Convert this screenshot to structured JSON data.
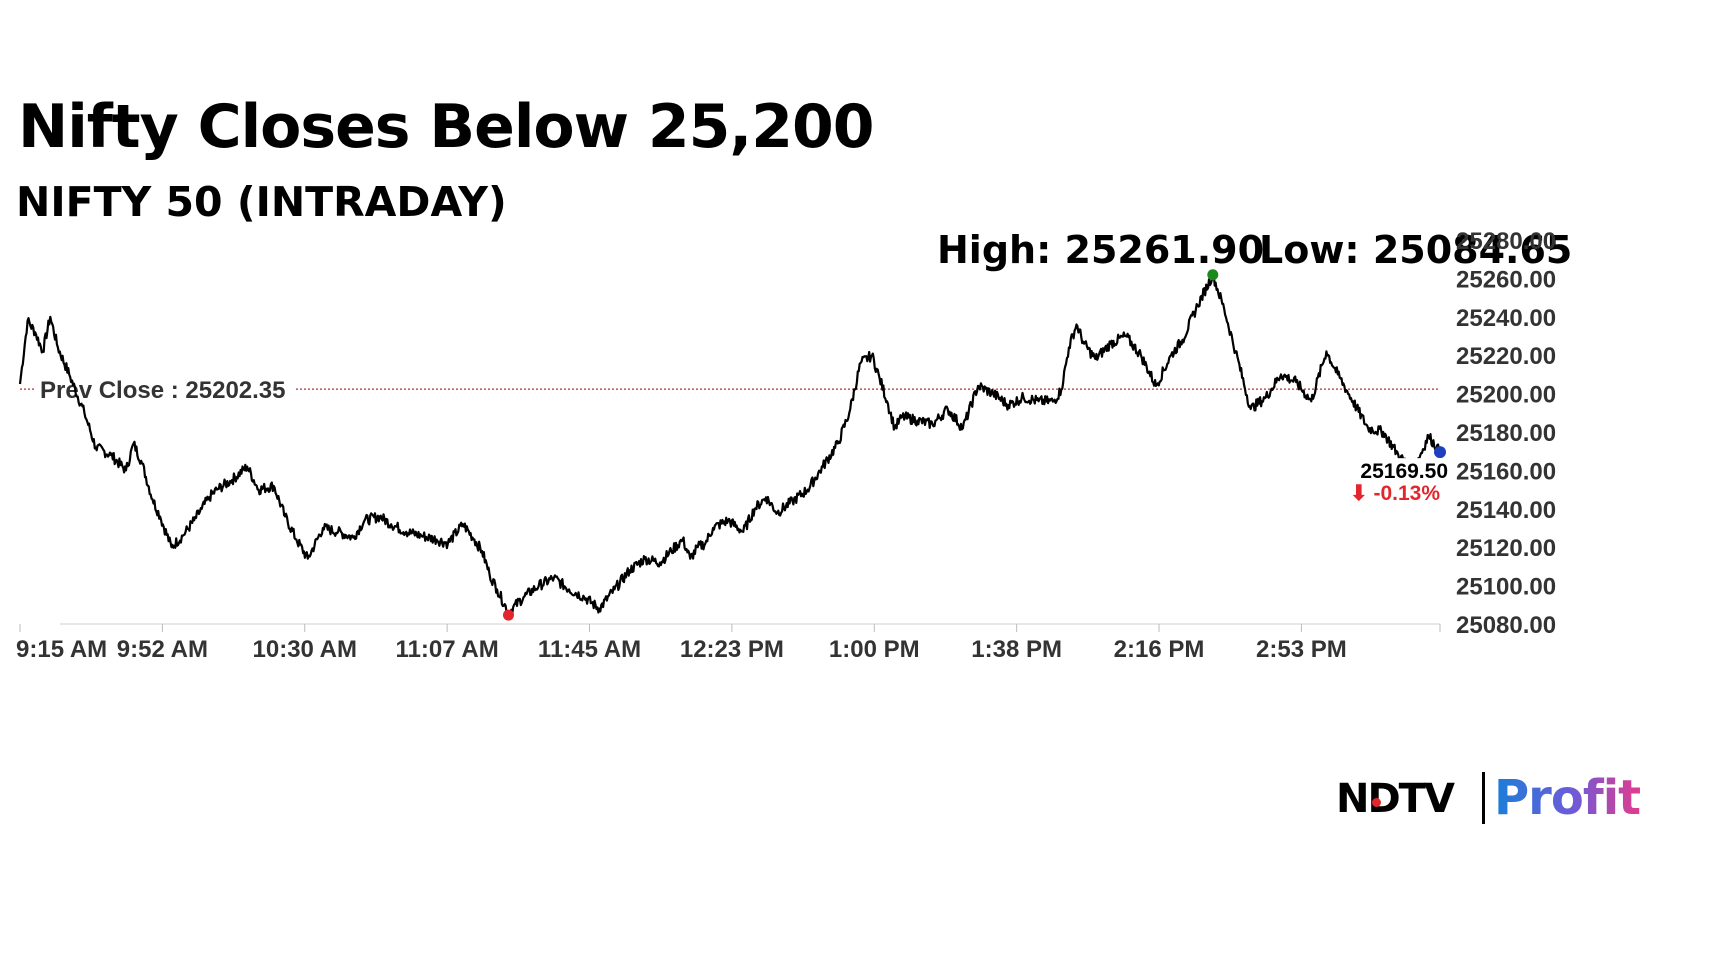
{
  "header": {
    "title": "Nifty Closes Below 25,200",
    "subtitle": "NIFTY 50 (INTRADAY)",
    "high_text": "High: 25261.90",
    "low_text": "Low: 25084.65"
  },
  "logo": {
    "brand": "NDTV",
    "product": "Profit"
  },
  "chart_data": {
    "type": "line",
    "title": "NIFTY 50 (INTRADAY)",
    "xlabel": "",
    "ylabel": "",
    "x_start": "9:15 AM",
    "x_end": "3:30 PM",
    "ylim": [
      25080,
      25280
    ],
    "y_ticks": [
      "25080.00",
      "25100.00",
      "25120.00",
      "25140.00",
      "25160.00",
      "25180.00",
      "25200.00",
      "25220.00",
      "25240.00",
      "25260.00",
      "25280.00"
    ],
    "x_ticks": [
      "9:15 AM",
      "9:52 AM",
      "10:30 AM",
      "11:07 AM",
      "11:45 AM",
      "12:23 PM",
      "1:00 PM",
      "1:38 PM",
      "2:16 PM",
      "2:53 PM"
    ],
    "prev_close": 25202.35,
    "prev_close_label": "Prev Close : 25202.35",
    "high": 25261.9,
    "low": 25084.65,
    "last_value_label": "25169.50",
    "change_label": "-0.13%",
    "change_arrow": "⬇",
    "colors": {
      "line": "#000000",
      "high_marker": "#1a8a1a",
      "low_marker": "#e3262c",
      "last_marker": "#1f3fbf",
      "prev_close_line": "#b03030",
      "change": "#e3262c"
    },
    "series": [
      {
        "x_minutes": [
          0,
          2,
          4,
          6,
          8,
          10,
          13,
          17,
          20,
          24,
          28,
          30,
          32,
          35,
          37,
          40,
          43,
          46,
          48,
          50,
          52,
          56,
          60,
          63,
          67,
          70,
          73,
          76,
          80,
          84,
          88,
          91,
          95,
          98,
          102,
          106,
          110,
          113,
          117,
          120,
          122,
          124,
          126,
          129,
          133,
          137,
          141,
          145,
          149,
          153,
          157,
          161,
          165,
          169,
          172,
          175,
          177,
          179,
          181,
          183,
          187,
          191,
          194,
          197,
          200,
          204,
          208,
          212,
          216,
          219,
          222,
          225,
          227,
          229,
          231,
          233,
          237,
          241,
          245,
          249,
          253,
          257,
          261,
          265,
          269,
          273,
          275,
          277,
          279,
          281,
          284,
          288,
          292,
          296,
          300,
          304,
          307,
          311,
          315,
          318,
          321,
          325,
          329,
          333,
          337,
          341,
          345,
          348,
          352,
          356,
          360,
          364,
          368,
          372,
          375
        ],
        "values": [
          25205,
          25238,
          25232,
          25222,
          25240,
          25224,
          25210,
          25190,
          25172,
          25168,
          25160,
          25174,
          25165,
          25145,
          25136,
          25120,
          25126,
          25134,
          25140,
          25146,
          25150,
          25155,
          25162,
          25150,
          25152,
          25136,
          25124,
          25114,
          25130,
          25128,
          25125,
          25134,
          25136,
          25132,
          25128,
          25126,
          25124,
          25122,
          25132,
          25124,
          25118,
          25106,
          25098,
          25086,
          25094,
          25100,
          25104,
          25098,
          25094,
          25088,
          25098,
          25108,
          25114,
          25112,
          25118,
          25124,
          25114,
          25120,
          25122,
          25130,
          25134,
          25128,
          25140,
          25146,
          25138,
          25144,
          25150,
          25162,
          25174,
          25190,
          25216,
          25220,
          25208,
          25196,
          25182,
          25188,
          25186,
          25184,
          25192,
          25182,
          25204,
          25200,
          25194,
          25198,
          25196,
          25196,
          25202,
          25224,
          25236,
          25226,
          25218,
          25226,
          25230,
          25220,
          25204,
          25220,
          25228,
          25246,
          25261.9,
          25244,
          25222,
          25192,
          25198,
          25210,
          25206,
          25196,
          25222,
          25210,
          25196,
          25182,
          25180,
          25168,
          25160,
          25178,
          25169.5
        ]
      }
    ]
  }
}
